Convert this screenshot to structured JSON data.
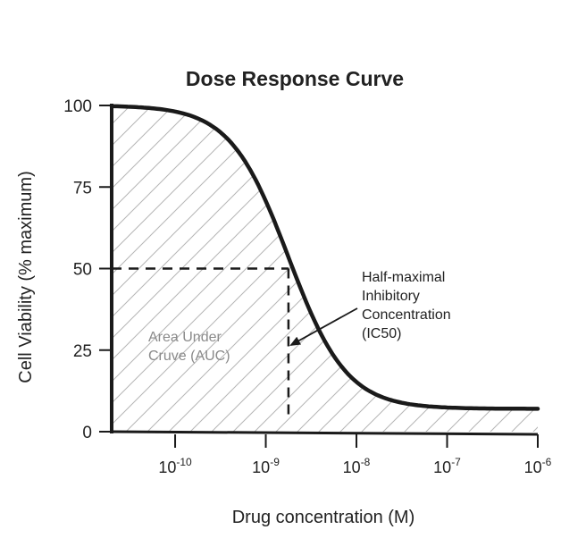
{
  "chart_data": {
    "type": "line",
    "title": "Dose Response Curve",
    "xlabel": "Drug concentration (M)",
    "ylabel": "Cell Viability (% maximum)",
    "xscale": "log10",
    "xlim_log10": [
      -10.7,
      -6
    ],
    "ylim": [
      0,
      100
    ],
    "yticks": [
      0,
      25,
      50,
      75,
      100
    ],
    "xticks": [
      {
        "log10": -10,
        "base": "10",
        "exp": "-10"
      },
      {
        "log10": -9,
        "base": "10",
        "exp": "-9"
      },
      {
        "log10": -8,
        "base": "10",
        "exp": "-8"
      },
      {
        "log10": -7,
        "base": "10",
        "exp": "-7"
      },
      {
        "log10": -6,
        "base": "10",
        "exp": "-6"
      }
    ],
    "series": [
      {
        "name": "Cell viability",
        "model": "four-parameter logistic",
        "top": 100,
        "bottom": 7,
        "log_ic50": -8.75,
        "hill_slope": 1.35,
        "x_log10_start": -10.7,
        "x_log10_end": -6
      }
    ],
    "ic50": {
      "log10": -8.75,
      "y": 50
    },
    "shaded_region": "Area under the curve (hatched)",
    "annotations": {
      "auc_lines": [
        "Area Under",
        "Cruve (AUC)"
      ],
      "ic50_lines": [
        "Half-maximal",
        "Inhibitory",
        "Concentration",
        "(IC50)"
      ]
    }
  },
  "colors": {
    "curve": "#1a1a1a",
    "axis": "#1a1a1a",
    "hatch": "#b5b5b5",
    "auc_text": "#8a8a8a",
    "text": "#222222"
  }
}
